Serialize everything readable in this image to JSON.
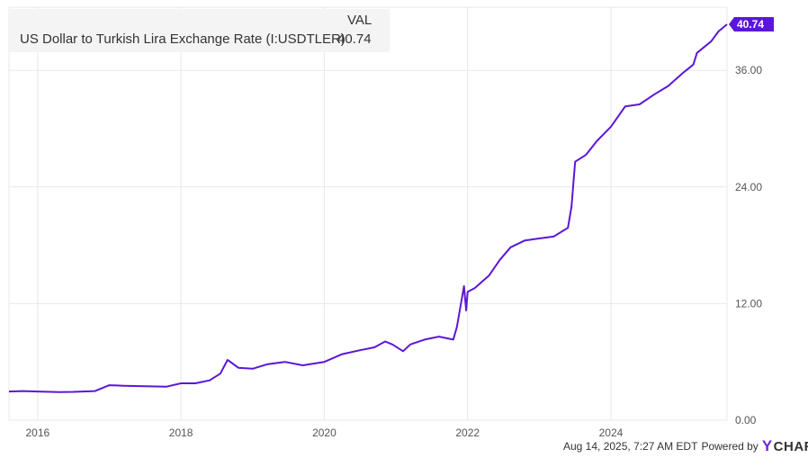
{
  "legend": {
    "header": "VAL",
    "series_name": "US Dollar to Turkish Lira Exchange Rate (I:USDTLER)",
    "value": "40.74"
  },
  "footer": {
    "timestamp": "Aug 14, 2025, 7:27 AM EDT",
    "powered_by": "Powered by",
    "brand_mark": "Y",
    "brand_rest": "CHARTS"
  },
  "colors": {
    "line": "#5b17d6",
    "grid": "#e8e8e8",
    "axis_text": "#555555",
    "badge": "#5b17d6",
    "badge_text": "#ffffff"
  },
  "chart_data": {
    "type": "line",
    "title": "",
    "xlabel": "",
    "ylabel": "",
    "ylim": [
      0,
      42.5
    ],
    "xlim": [
      2015.6,
      2025.62
    ],
    "x_ticks": [
      {
        "value": 2016,
        "label": "2016"
      },
      {
        "value": 2018,
        "label": "2018"
      },
      {
        "value": 2020,
        "label": "2020"
      },
      {
        "value": 2022,
        "label": "2022"
      },
      {
        "value": 2024,
        "label": "2024"
      }
    ],
    "y_ticks": [
      {
        "value": 0,
        "label": "0.00"
      },
      {
        "value": 12,
        "label": "12.00"
      },
      {
        "value": 24,
        "label": "24.00"
      },
      {
        "value": 36,
        "label": "36.00"
      }
    ],
    "grid": true,
    "last_value_label": "40.74",
    "series": [
      {
        "name": "US Dollar to Turkish Lira Exchange Rate (I:USDTLER)",
        "x": [
          2015.6,
          2015.8,
          2016.0,
          2016.3,
          2016.5,
          2016.8,
          2017.0,
          2017.2,
          2017.5,
          2017.8,
          2018.0,
          2018.2,
          2018.4,
          2018.55,
          2018.65,
          2018.8,
          2019.0,
          2019.2,
          2019.45,
          2019.7,
          2020.0,
          2020.25,
          2020.5,
          2020.7,
          2020.85,
          2020.95,
          2021.1,
          2021.2,
          2021.4,
          2021.6,
          2021.8,
          2021.85,
          2021.95,
          2021.98,
          2022.0,
          2022.1,
          2022.3,
          2022.45,
          2022.6,
          2022.8,
          2023.0,
          2023.2,
          2023.4,
          2023.45,
          2023.5,
          2023.65,
          2023.8,
          2024.0,
          2024.2,
          2024.4,
          2024.6,
          2024.8,
          2025.0,
          2025.15,
          2025.2,
          2025.4,
          2025.5,
          2025.62
        ],
        "y": [
          2.95,
          3.0,
          2.95,
          2.9,
          2.92,
          3.0,
          3.6,
          3.55,
          3.5,
          3.45,
          3.8,
          3.8,
          4.1,
          4.8,
          6.2,
          5.4,
          5.3,
          5.75,
          6.0,
          5.65,
          6.0,
          6.8,
          7.2,
          7.5,
          8.1,
          7.8,
          7.1,
          7.8,
          8.3,
          8.6,
          8.3,
          9.6,
          13.8,
          11.3,
          13.2,
          13.6,
          14.9,
          16.5,
          17.8,
          18.5,
          18.7,
          18.9,
          19.8,
          22.0,
          26.6,
          27.3,
          28.7,
          30.2,
          32.3,
          32.5,
          33.5,
          34.4,
          35.7,
          36.6,
          37.8,
          39.0,
          40.0,
          40.74
        ]
      }
    ]
  }
}
